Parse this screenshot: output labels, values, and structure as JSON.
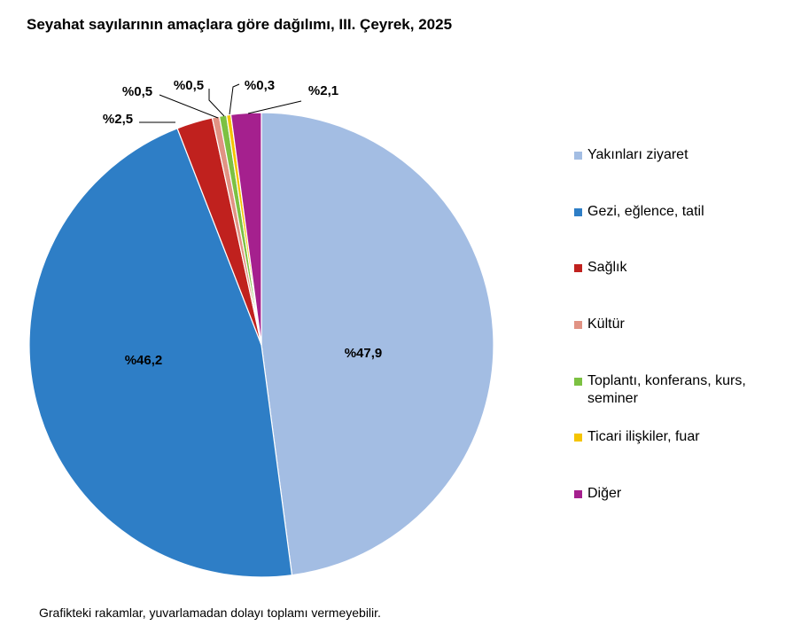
{
  "title": "Seyahat sayılarının amaçlara göre dağılımı, III. Çeyrek, 2025",
  "note": "Grafikteki rakamlar, yuvarlamadan dolayı toplamı vermeyebilir.",
  "chart_data": {
    "type": "pie",
    "title": "Seyahat sayılarının amaçlara göre dağılımı, III. Çeyrek, 2025",
    "legend_position": "right",
    "slices": [
      {
        "name": "Yakınları ziyaret",
        "value": 47.9,
        "label": "%47,9",
        "color": "#a3bde3"
      },
      {
        "name": "Gezi, eğlence, tatil",
        "value": 46.2,
        "label": "%46,2",
        "color": "#2e7ec6"
      },
      {
        "name": "Sağlık",
        "value": 2.5,
        "label": "%2,5",
        "color": "#c0211e"
      },
      {
        "name": "Kültür",
        "value": 0.5,
        "label": "%0,5",
        "color": "#e19384"
      },
      {
        "name": "Toplantı, konferans, kurs, seminer",
        "value": 0.5,
        "label": "%0,5",
        "color": "#7cc142"
      },
      {
        "name": "Ticari ilişkiler, fuar",
        "value": 0.3,
        "label": "%0,3",
        "color": "#f5c400"
      },
      {
        "name": "Diğer",
        "value": 2.1,
        "label": "%2,1",
        "color": "#a5208e"
      }
    ]
  }
}
